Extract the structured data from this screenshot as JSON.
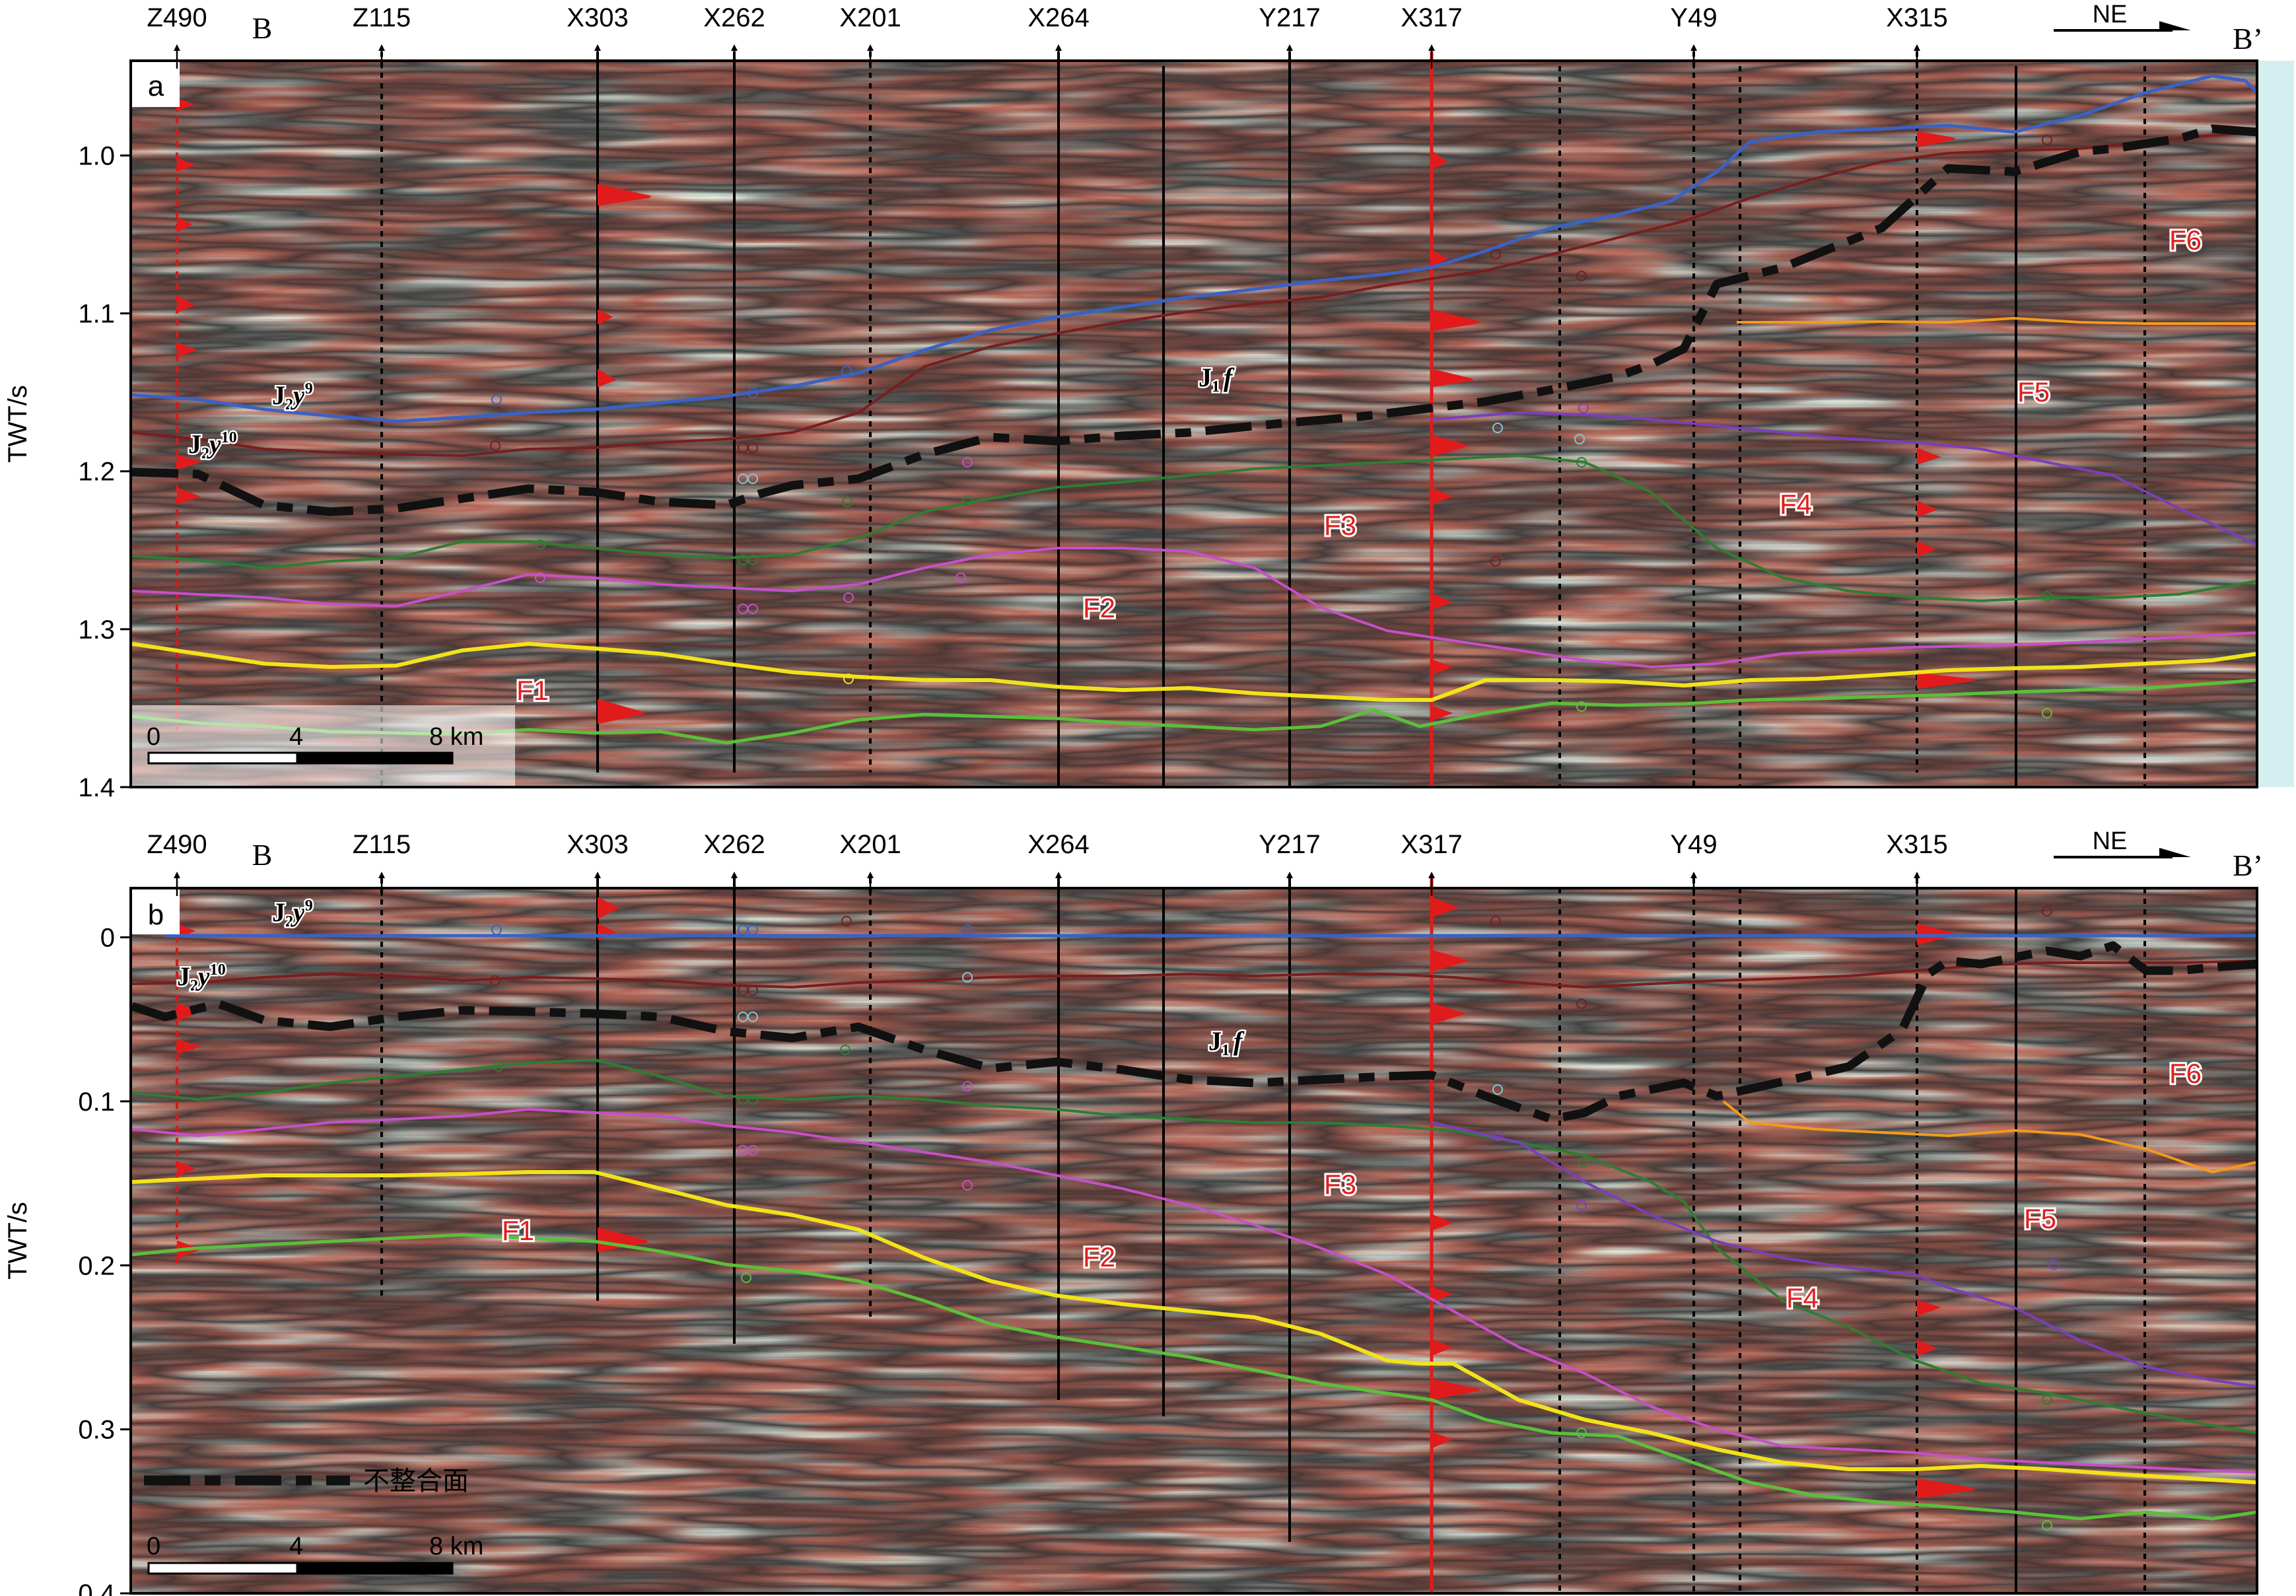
{
  "panels": [
    {
      "id": "a",
      "panel_label": "a",
      "axis": {
        "title": "TWT/s",
        "ticks": [
          "1.0",
          "1.1",
          "1.2",
          "1.3",
          "1.4"
        ],
        "tick_values": [
          1.0,
          1.1,
          1.2,
          1.3,
          1.4
        ],
        "min": 0.94,
        "max": 1.4
      },
      "section_start": "B",
      "section_end": "B’",
      "direction": "NE",
      "wells": [
        "Z490",
        "Z115",
        "X303",
        "X262",
        "X201",
        "X264",
        "Y217",
        "X317",
        "Y49",
        "X315"
      ],
      "horizon_labels": {
        "j2y9": {
          "main": "J",
          "sub": "2",
          "italic": "y",
          "sup": "9"
        },
        "j2y10": {
          "main": "J",
          "sub": "2",
          "italic": "y",
          "sup": "10"
        },
        "j1f": {
          "main": "J",
          "sub": "1",
          "italic": "f"
        }
      },
      "facies": [
        "F1",
        "F2",
        "F3",
        "F4",
        "F5",
        "F6"
      ],
      "scale_bar": {
        "ticks": [
          "0",
          "4",
          "8 km"
        ]
      }
    },
    {
      "id": "b",
      "panel_label": "b",
      "axis": {
        "title": "TWT/s",
        "ticks": [
          "0",
          "0.1",
          "0.2",
          "0.3",
          "0.4"
        ],
        "tick_values": [
          0,
          0.1,
          0.2,
          0.3,
          0.4
        ],
        "min": -0.03,
        "max": 0.4
      },
      "section_start": "B",
      "section_end": "B’",
      "direction": "NE",
      "wells": [
        "Z490",
        "Z115",
        "X303",
        "X262",
        "X201",
        "X264",
        "Y217",
        "X317",
        "Y49",
        "X315"
      ],
      "horizon_labels": {
        "j2y9": {
          "main": "J",
          "sub": "2",
          "italic": "y",
          "sup": "9"
        },
        "j2y10": {
          "main": "J",
          "sub": "2",
          "italic": "y",
          "sup": "10"
        },
        "j1f": {
          "main": "J",
          "sub": "1",
          "italic": "f"
        }
      },
      "facies": [
        "F1",
        "F2",
        "F3",
        "F4",
        "F5",
        "F6"
      ],
      "scale_bar": {
        "ticks": [
          "0",
          "4",
          "8 km"
        ]
      },
      "legend": {
        "unconformity": "不整合面"
      }
    }
  ],
  "colors": {
    "j2y9": "#3a62c4",
    "j2y10": "#7a1e1e",
    "j1f": "#111111",
    "j1f_ticks": "#7fc9d6",
    "dark_green": "#2f7d32",
    "magenta": "#c84fc8",
    "yellow": "#f2e21a",
    "light_green": "#5bbf3a",
    "purple": "#7b3fb8",
    "orange": "#f39a1c",
    "well_red": "#e11b1b",
    "facies_label": "#e02020"
  }
}
